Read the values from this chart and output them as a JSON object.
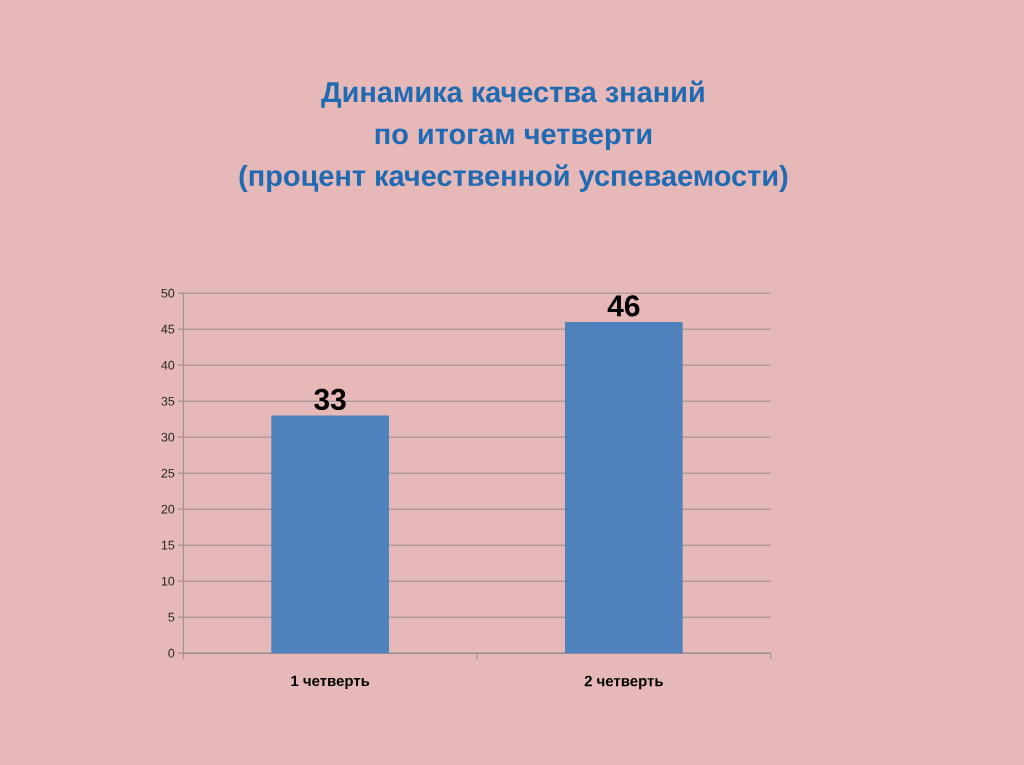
{
  "chart_data": {
    "type": "bar",
    "title": "Динамика качества знаний по итогам четверти",
    "subtitle": "(процент качественной успеваемости)",
    "categories": [
      "1 четверть",
      "2 четверть"
    ],
    "values": [
      33,
      46
    ],
    "color": "#4f81bd",
    "ylim": [
      0,
      50
    ],
    "yticks": [
      0,
      5,
      10,
      15,
      20,
      25,
      30,
      35,
      40,
      45,
      50
    ],
    "grid": "y",
    "data_labels": true
  }
}
